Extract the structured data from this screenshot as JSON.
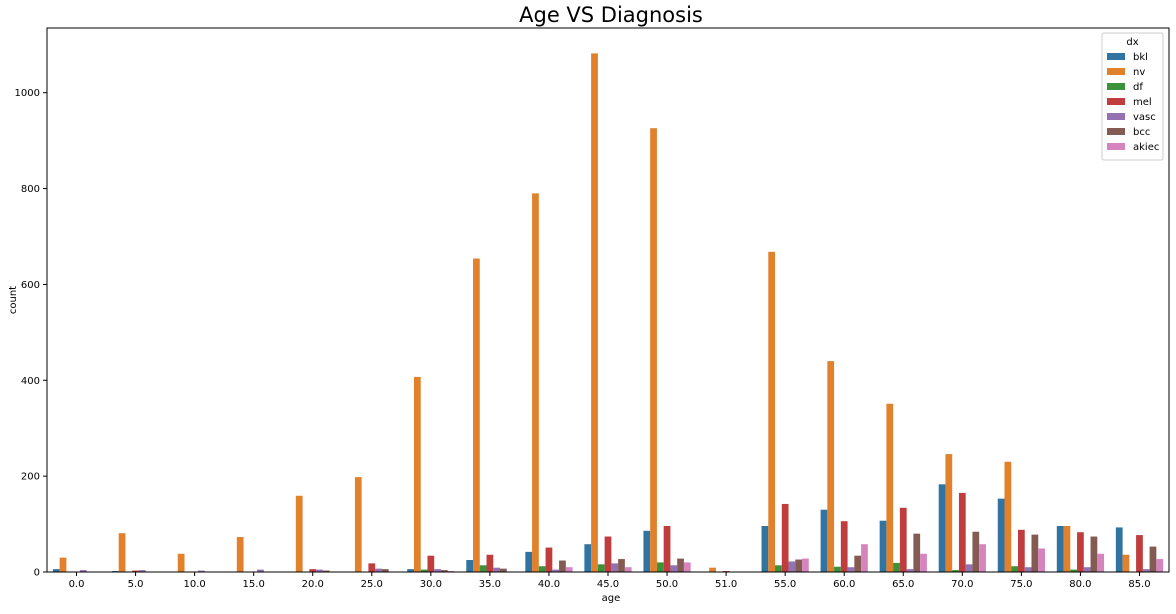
{
  "chart_data": {
    "type": "bar",
    "title": "Age VS Diagnosis",
    "xlabel": "age",
    "ylabel": "count",
    "ylim": [
      0,
      1135
    ],
    "yticks": [
      0,
      200,
      400,
      600,
      800,
      1000
    ],
    "legend": {
      "title": "dx",
      "placement": "top-right"
    },
    "grid": false,
    "categories": [
      "0.0",
      "5.0",
      "10.0",
      "15.0",
      "20.0",
      "25.0",
      "30.0",
      "35.0",
      "40.0",
      "45.0",
      "50.0",
      "51.0",
      "55.0",
      "60.0",
      "65.0",
      "70.0",
      "75.0",
      "80.0",
      "85.0"
    ],
    "series": [
      {
        "name": "bkl",
        "color": "#3274a1",
        "values": [
          6,
          2,
          0,
          0,
          0,
          0,
          6,
          25,
          42,
          58,
          86,
          0,
          96,
          130,
          107,
          183,
          153,
          96,
          93
        ]
      },
      {
        "name": "nv",
        "color": "#e1812c",
        "values": [
          30,
          81,
          38,
          73,
          159,
          198,
          407,
          654,
          790,
          1082,
          926,
          9,
          668,
          440,
          351,
          246,
          230,
          96,
          36
        ]
      },
      {
        "name": "df",
        "color": "#3a923a",
        "values": [
          0,
          0,
          0,
          0,
          0,
          0,
          5,
          14,
          12,
          16,
          20,
          0,
          14,
          11,
          19,
          4,
          12,
          5,
          0
        ]
      },
      {
        "name": "mel",
        "color": "#c03d3e",
        "values": [
          0,
          3,
          0,
          0,
          6,
          18,
          34,
          36,
          51,
          74,
          96,
          2,
          142,
          106,
          134,
          165,
          88,
          83,
          77
        ]
      },
      {
        "name": "vasc",
        "color": "#9372b2",
        "values": [
          4,
          4,
          3,
          5,
          5,
          7,
          6,
          9,
          5,
          18,
          14,
          0,
          22,
          10,
          6,
          16,
          10,
          10,
          6
        ]
      },
      {
        "name": "bcc",
        "color": "#845b53",
        "values": [
          0,
          0,
          0,
          0,
          3,
          6,
          4,
          7,
          24,
          27,
          28,
          0,
          26,
          34,
          80,
          84,
          78,
          74,
          53
        ]
      },
      {
        "name": "akiec",
        "color": "#d684bd",
        "values": [
          0,
          0,
          0,
          0,
          0,
          0,
          2,
          0,
          10,
          10,
          20,
          0,
          28,
          58,
          38,
          58,
          49,
          38,
          27
        ]
      }
    ]
  }
}
